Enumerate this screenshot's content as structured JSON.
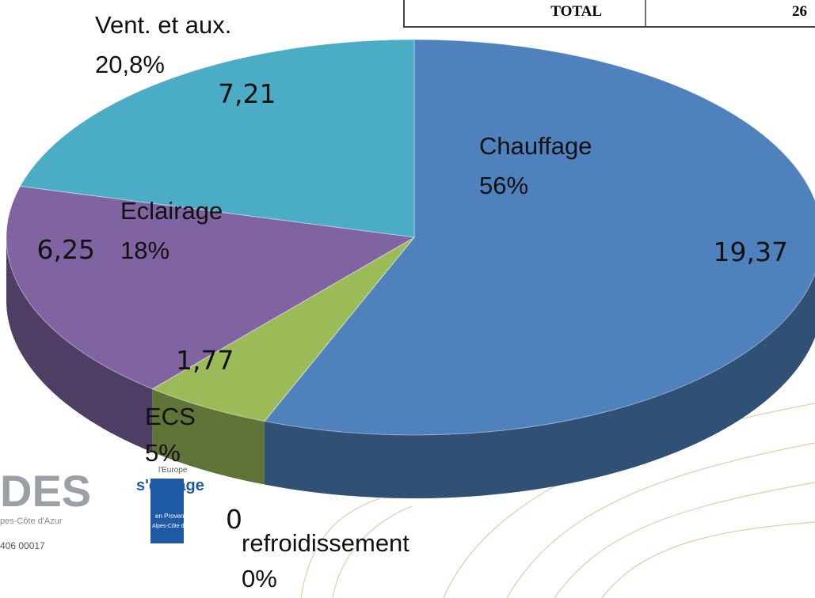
{
  "chart_data": {
    "type": "pie",
    "categories": [
      "Chauffage",
      "refroidissement",
      "ECS",
      "Eclairage",
      "Vent. et aux."
    ],
    "values": [
      19.37,
      0,
      1.77,
      6.25,
      7.21
    ],
    "value_labels": [
      "19,37",
      "0",
      "1,77",
      "6,25",
      "7,21"
    ],
    "percentages": [
      56,
      0,
      5,
      18,
      20.8
    ],
    "percentage_labels": [
      "56%",
      "0%",
      "5%",
      "18%",
      "20,8%"
    ],
    "colors": [
      "#4f81bd",
      "#c0504d",
      "#9bbb59",
      "#8064a2",
      "#4bacc6"
    ]
  },
  "background": {
    "table_total_label": "TOTAL",
    "table_total_value": "26",
    "logo_text": "DES",
    "logo_region": "pes-Côte d'Azur",
    "logo_number": "406 00017",
    "europe_top": "l'Europe",
    "europe_main": "s'engage",
    "europe_line1": "en Provence",
    "europe_line2": "Alpes-Côte d'Azur"
  }
}
